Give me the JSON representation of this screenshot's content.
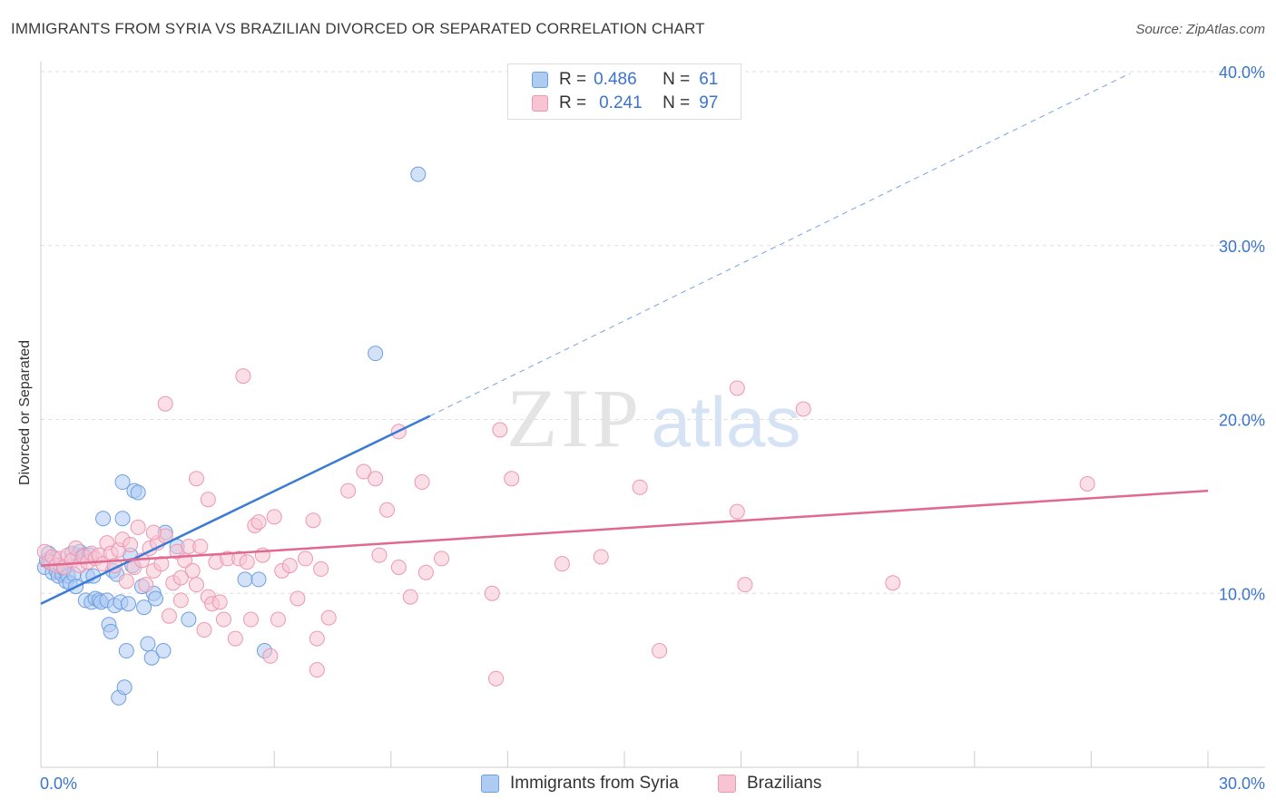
{
  "title": "IMMIGRANTS FROM SYRIA VS BRAZILIAN DIVORCED OR SEPARATED CORRELATION CHART",
  "source": "Source: ZipAtlas.com",
  "watermark": {
    "zip": "ZIP",
    "atlas": "atlas"
  },
  "legend": {
    "rows": [
      {
        "r_label": "R =",
        "r_value": "0.486",
        "n_label": "N =",
        "n_value": "61",
        "color": "#aecbf2",
        "stroke": "#6d9fe0"
      },
      {
        "r_label": "R =",
        "r_value": "0.241",
        "n_label": "N =",
        "n_value": "97",
        "color": "#f7c4d3",
        "stroke": "#ec97b2"
      }
    ]
  },
  "bottom_legend": [
    {
      "label": "Immigrants from Syria",
      "color": "#aecbf2",
      "stroke": "#6d9fe0"
    },
    {
      "label": "Brazilians",
      "color": "#f7c4d3",
      "stroke": "#ec97b2"
    }
  ],
  "chart_data": {
    "type": "scatter",
    "xlabel": "",
    "ylabel": "Divorced or Separated",
    "xlim": [
      0,
      30
    ],
    "ylim": [
      0,
      40
    ],
    "x_tick_labels": [
      {
        "value": 0,
        "label": "0.0%"
      },
      {
        "value": 30,
        "label": "30.0%"
      }
    ],
    "y_tick_labels": [
      {
        "value": 10,
        "label": "10.0%"
      },
      {
        "value": 20,
        "label": "20.0%"
      },
      {
        "value": 30,
        "label": "30.0%"
      },
      {
        "value": 40,
        "label": "40.0%"
      }
    ],
    "grid": true,
    "series": [
      {
        "name": "Immigrants from Syria",
        "color": "#6d9fe0",
        "fill": "#aecbf2",
        "trend": {
          "x": [
            0,
            10
          ],
          "y": [
            9.4,
            20.2
          ],
          "extended_to": [
            28,
            39.9
          ],
          "color": "#3a7bd5"
        },
        "points": [
          [
            0.1,
            11.5
          ],
          [
            0.15,
            11.9
          ],
          [
            0.2,
            12.3
          ],
          [
            0.25,
            11.8
          ],
          [
            0.3,
            11.2
          ],
          [
            0.35,
            12.0
          ],
          [
            0.4,
            11.3
          ],
          [
            0.45,
            11.0
          ],
          [
            0.5,
            11.6
          ],
          [
            0.55,
            11.1
          ],
          [
            0.6,
            11.4
          ],
          [
            0.65,
            10.7
          ],
          [
            0.7,
            11.0
          ],
          [
            0.75,
            10.6
          ],
          [
            0.8,
            12.3
          ],
          [
            0.85,
            11.1
          ],
          [
            0.9,
            10.4
          ],
          [
            0.95,
            12.2
          ],
          [
            1.0,
            12.4
          ],
          [
            1.05,
            12.1
          ],
          [
            1.1,
            12.2
          ],
          [
            1.15,
            9.6
          ],
          [
            1.2,
            11.0
          ],
          [
            1.25,
            12.2
          ],
          [
            1.3,
            9.5
          ],
          [
            1.35,
            11.0
          ],
          [
            1.4,
            9.7
          ],
          [
            1.5,
            9.6
          ],
          [
            1.55,
            9.5
          ],
          [
            1.6,
            14.3
          ],
          [
            1.7,
            9.6
          ],
          [
            1.75,
            8.2
          ],
          [
            1.8,
            7.8
          ],
          [
            1.85,
            11.3
          ],
          [
            1.9,
            9.3
          ],
          [
            1.95,
            11.1
          ],
          [
            2.0,
            4.0
          ],
          [
            2.05,
            9.5
          ],
          [
            2.1,
            14.3
          ],
          [
            2.1,
            16.4
          ],
          [
            2.15,
            4.6
          ],
          [
            2.2,
            6.7
          ],
          [
            2.25,
            9.4
          ],
          [
            2.3,
            12.2
          ],
          [
            2.35,
            11.6
          ],
          [
            2.4,
            15.9
          ],
          [
            2.5,
            15.8
          ],
          [
            2.6,
            10.4
          ],
          [
            2.65,
            9.2
          ],
          [
            2.75,
            7.1
          ],
          [
            2.85,
            6.3
          ],
          [
            2.9,
            10.0
          ],
          [
            2.95,
            9.7
          ],
          [
            3.15,
            6.7
          ],
          [
            3.2,
            13.5
          ],
          [
            3.5,
            12.7
          ],
          [
            3.8,
            8.5
          ],
          [
            5.25,
            10.8
          ],
          [
            5.6,
            10.8
          ],
          [
            5.75,
            6.7
          ],
          [
            9.7,
            34.1
          ],
          [
            8.6,
            23.8
          ]
        ]
      },
      {
        "name": "Brazilians",
        "color": "#ec97b2",
        "fill": "#f7c4d3",
        "trend": {
          "x": [
            0,
            30
          ],
          "y": [
            11.6,
            15.9
          ],
          "color": "#e06891"
        },
        "points": [
          [
            0.1,
            12.4
          ],
          [
            0.2,
            11.8
          ],
          [
            0.3,
            12.1
          ],
          [
            0.4,
            11.6
          ],
          [
            0.5,
            12.0
          ],
          [
            0.6,
            11.5
          ],
          [
            0.7,
            12.2
          ],
          [
            0.8,
            11.9
          ],
          [
            0.9,
            12.6
          ],
          [
            1.0,
            11.6
          ],
          [
            1.1,
            12.1
          ],
          [
            1.2,
            11.8
          ],
          [
            1.3,
            12.3
          ],
          [
            1.4,
            12.0
          ],
          [
            1.5,
            12.2
          ],
          [
            1.6,
            11.7
          ],
          [
            1.7,
            12.9
          ],
          [
            1.8,
            12.3
          ],
          [
            1.9,
            11.6
          ],
          [
            2.0,
            12.5
          ],
          [
            2.1,
            13.1
          ],
          [
            2.2,
            10.7
          ],
          [
            2.3,
            12.8
          ],
          [
            2.4,
            11.5
          ],
          [
            2.5,
            13.8
          ],
          [
            2.6,
            11.9
          ],
          [
            2.7,
            10.5
          ],
          [
            2.8,
            12.6
          ],
          [
            2.9,
            11.3
          ],
          [
            3.0,
            12.9
          ],
          [
            3.1,
            11.7
          ],
          [
            3.2,
            13.3
          ],
          [
            3.3,
            8.7
          ],
          [
            3.4,
            10.6
          ],
          [
            3.5,
            12.4
          ],
          [
            3.6,
            9.6
          ],
          [
            3.7,
            11.9
          ],
          [
            3.8,
            12.7
          ],
          [
            3.9,
            11.3
          ],
          [
            4.0,
            10.5
          ],
          [
            4.1,
            12.7
          ],
          [
            4.2,
            7.9
          ],
          [
            4.3,
            9.8
          ],
          [
            4.4,
            9.4
          ],
          [
            4.5,
            11.8
          ],
          [
            4.6,
            9.5
          ],
          [
            4.7,
            8.5
          ],
          [
            4.8,
            12.0
          ],
          [
            5.0,
            7.4
          ],
          [
            5.1,
            12.0
          ],
          [
            5.3,
            11.8
          ],
          [
            5.4,
            8.5
          ],
          [
            5.5,
            13.9
          ],
          [
            5.6,
            14.1
          ],
          [
            5.7,
            12.2
          ],
          [
            5.9,
            6.4
          ],
          [
            6.0,
            14.4
          ],
          [
            6.1,
            8.5
          ],
          [
            6.2,
            11.3
          ],
          [
            6.4,
            11.6
          ],
          [
            6.6,
            9.7
          ],
          [
            6.8,
            12.0
          ],
          [
            7.0,
            14.2
          ],
          [
            7.2,
            11.4
          ],
          [
            7.4,
            8.6
          ],
          [
            7.9,
            15.9
          ],
          [
            8.3,
            17.0
          ],
          [
            8.6,
            16.6
          ],
          [
            8.7,
            12.2
          ],
          [
            8.9,
            14.8
          ],
          [
            9.2,
            11.5
          ],
          [
            9.5,
            9.8
          ],
          [
            9.8,
            16.4
          ],
          [
            9.9,
            11.2
          ],
          [
            10.3,
            12.0
          ],
          [
            11.6,
            10.0
          ],
          [
            11.7,
            5.1
          ],
          [
            12.1,
            16.6
          ],
          [
            13.4,
            11.7
          ],
          [
            14.4,
            12.1
          ],
          [
            15.4,
            16.1
          ],
          [
            15.9,
            6.7
          ],
          [
            17.9,
            14.7
          ],
          [
            18.1,
            10.5
          ],
          [
            17.9,
            21.8
          ],
          [
            19.6,
            20.6
          ],
          [
            21.9,
            10.6
          ],
          [
            26.9,
            16.3
          ],
          [
            3.2,
            20.9
          ],
          [
            5.2,
            22.5
          ],
          [
            4.0,
            16.6
          ],
          [
            4.3,
            15.4
          ],
          [
            9.2,
            19.3
          ],
          [
            11.8,
            19.4
          ],
          [
            2.9,
            13.5
          ],
          [
            7.1,
            7.4
          ],
          [
            7.1,
            5.6
          ],
          [
            3.6,
            10.9
          ]
        ]
      }
    ]
  }
}
